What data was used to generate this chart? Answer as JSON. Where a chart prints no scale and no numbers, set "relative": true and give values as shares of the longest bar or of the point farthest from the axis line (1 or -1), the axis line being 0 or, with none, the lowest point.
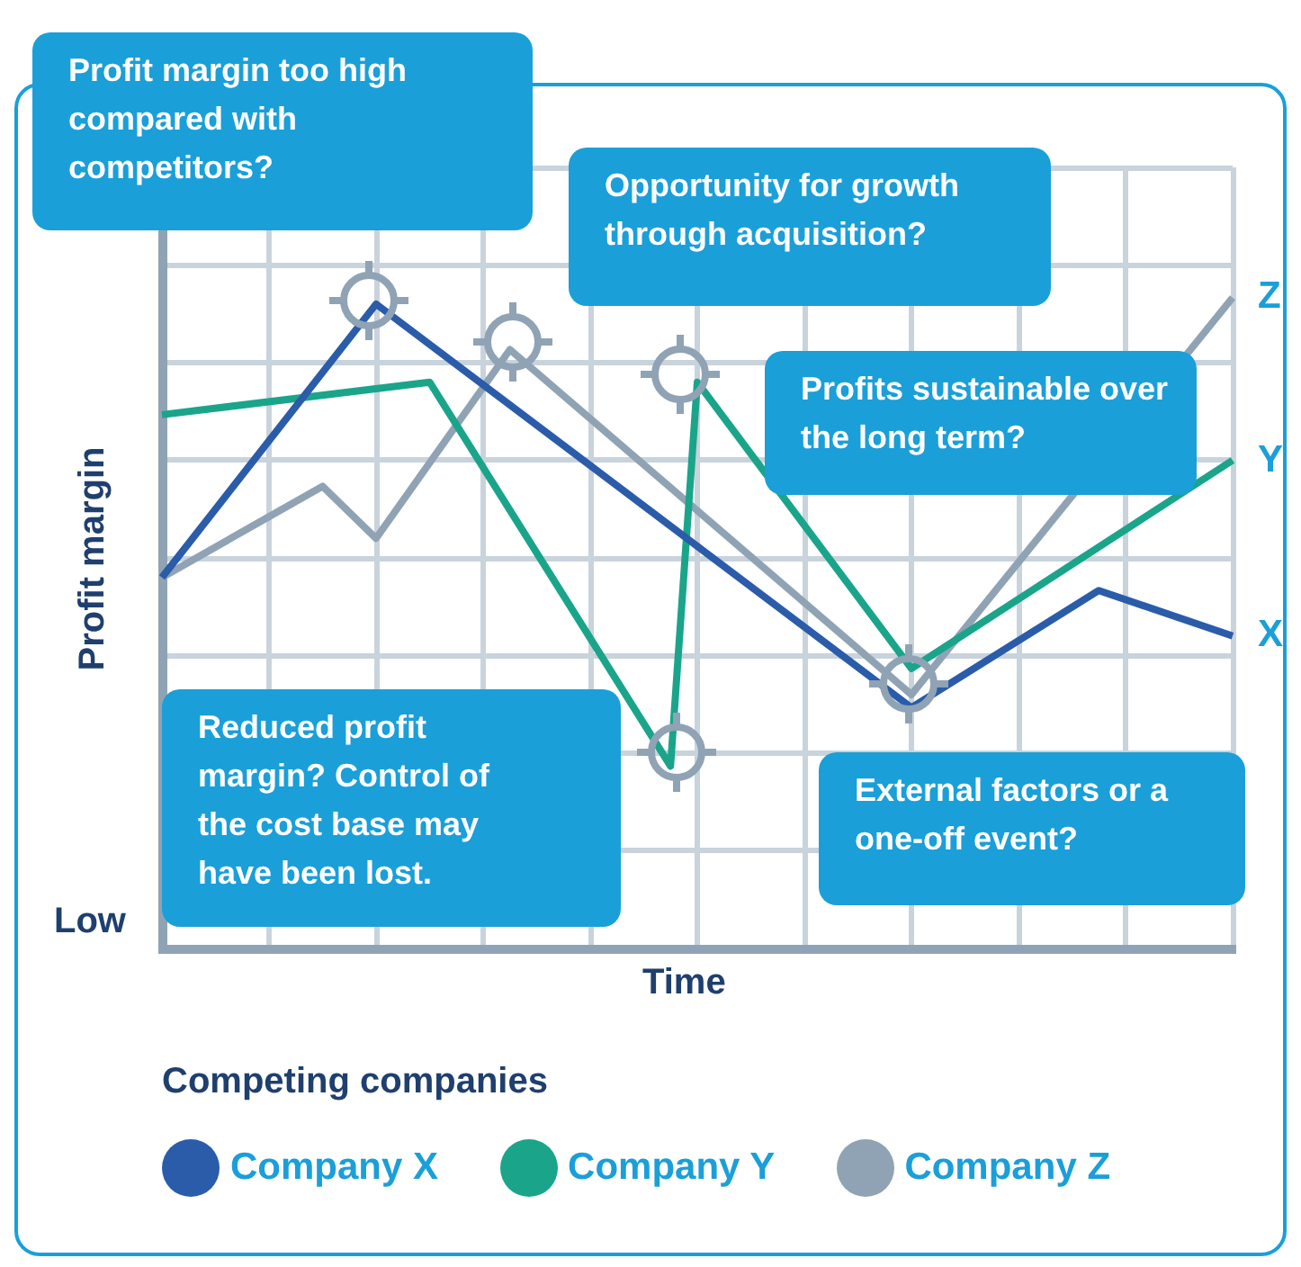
{
  "chart_data": {
    "type": "line",
    "xlabel": "Time",
    "ylabel": "Profit margin",
    "legend_title": "Competing companies",
    "relative": true,
    "grid": true,
    "legend": "bottom",
    "categories": [
      null,
      null,
      null,
      null,
      null,
      null,
      null,
      null,
      null,
      null,
      null,
      null,
      null,
      null,
      null,
      null,
      null,
      null,
      null,
      null,
      null,
      null,
      null,
      null,
      null,
      null,
      null,
      null,
      null,
      null,
      null,
      null,
      null,
      null,
      null,
      null,
      null,
      null,
      null,
      null,
      null
    ],
    "series": [
      {
        "name": "Company X",
        "color": "#2a5caa",
        "values": [
          0.57,
          null,
          null,
          null,
          null,
          null,
          null,
          null,
          0.99,
          null,
          null,
          null,
          null,
          null,
          null,
          null,
          null,
          null,
          null,
          null,
          null,
          null,
          null,
          null,
          null,
          null,
          null,
          null,
          0.37,
          null,
          null,
          null,
          null,
          null,
          null,
          0.55,
          null,
          null,
          null,
          null,
          0.48
        ]
      },
      {
        "name": "Company Y",
        "color": "#1aa58a",
        "values": [
          0.82,
          null,
          null,
          null,
          null,
          null,
          null,
          null,
          null,
          null,
          0.87,
          null,
          null,
          null,
          null,
          null,
          null,
          null,
          null,
          0.28,
          0.87,
          null,
          null,
          null,
          null,
          null,
          null,
          null,
          0.43,
          null,
          null,
          null,
          null,
          null,
          null,
          null,
          null,
          null,
          null,
          null,
          0.75
        ]
      },
      {
        "name": "Company Z",
        "color": "#8fa3b5",
        "values": [
          0.57,
          null,
          null,
          null,
          null,
          null,
          0.71,
          null,
          0.63,
          null,
          null,
          null,
          null,
          0.92,
          null,
          null,
          null,
          null,
          null,
          null,
          null,
          null,
          null,
          null,
          null,
          null,
          null,
          null,
          0.39,
          null,
          null,
          null,
          null,
          null,
          null,
          null,
          null,
          null,
          null,
          null,
          1.0
        ]
      }
    ],
    "annotations": [
      "Low",
      "X",
      "Y",
      "Z",
      "Profit margin too high compared with competitors?",
      "Opportunity for growth through acquisition?",
      "Profits sustainable over the long term?",
      "Reduced profit margin? Control of the cost base may have been lost.",
      "External factors or a one-off event?"
    ]
  }
}
